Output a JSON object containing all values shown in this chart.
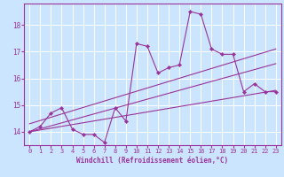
{
  "title": "",
  "xlabel": "Windchill (Refroidissement éolien,°C)",
  "background_color": "#cce5ff",
  "line_color": "#993399",
  "grid_color": "#ffffff",
  "x_values": [
    0,
    1,
    2,
    3,
    4,
    5,
    6,
    7,
    8,
    9,
    10,
    11,
    12,
    13,
    14,
    15,
    16,
    17,
    18,
    19,
    20,
    21,
    22,
    23
  ],
  "main_y": [
    14.0,
    14.2,
    14.7,
    14.9,
    14.1,
    13.9,
    13.9,
    13.6,
    14.9,
    14.4,
    17.3,
    17.2,
    16.2,
    16.4,
    16.5,
    18.5,
    18.4,
    17.1,
    16.9,
    16.9,
    15.5,
    15.8,
    15.5,
    15.5
  ],
  "trend1_start_x": 0,
  "trend1_start_y": 14.0,
  "trend1_end_x": 23,
  "trend1_end_y": 15.55,
  "trend2_start_x": 0,
  "trend2_start_y": 14.0,
  "trend2_end_x": 23,
  "trend2_end_y": 16.55,
  "trend3_start_x": 0,
  "trend3_start_y": 14.3,
  "trend3_end_x": 23,
  "trend3_end_y": 17.1,
  "xlim": [
    -0.5,
    23.5
  ],
  "ylim": [
    13.5,
    18.8
  ],
  "yticks": [
    14,
    15,
    16,
    17,
    18
  ],
  "xticks": [
    0,
    1,
    2,
    3,
    4,
    5,
    6,
    7,
    8,
    9,
    10,
    11,
    12,
    13,
    14,
    15,
    16,
    17,
    18,
    19,
    20,
    21,
    22,
    23
  ],
  "xlabel_fontsize": 5.5,
  "ytick_fontsize": 5.5,
  "xtick_fontsize": 5.0
}
